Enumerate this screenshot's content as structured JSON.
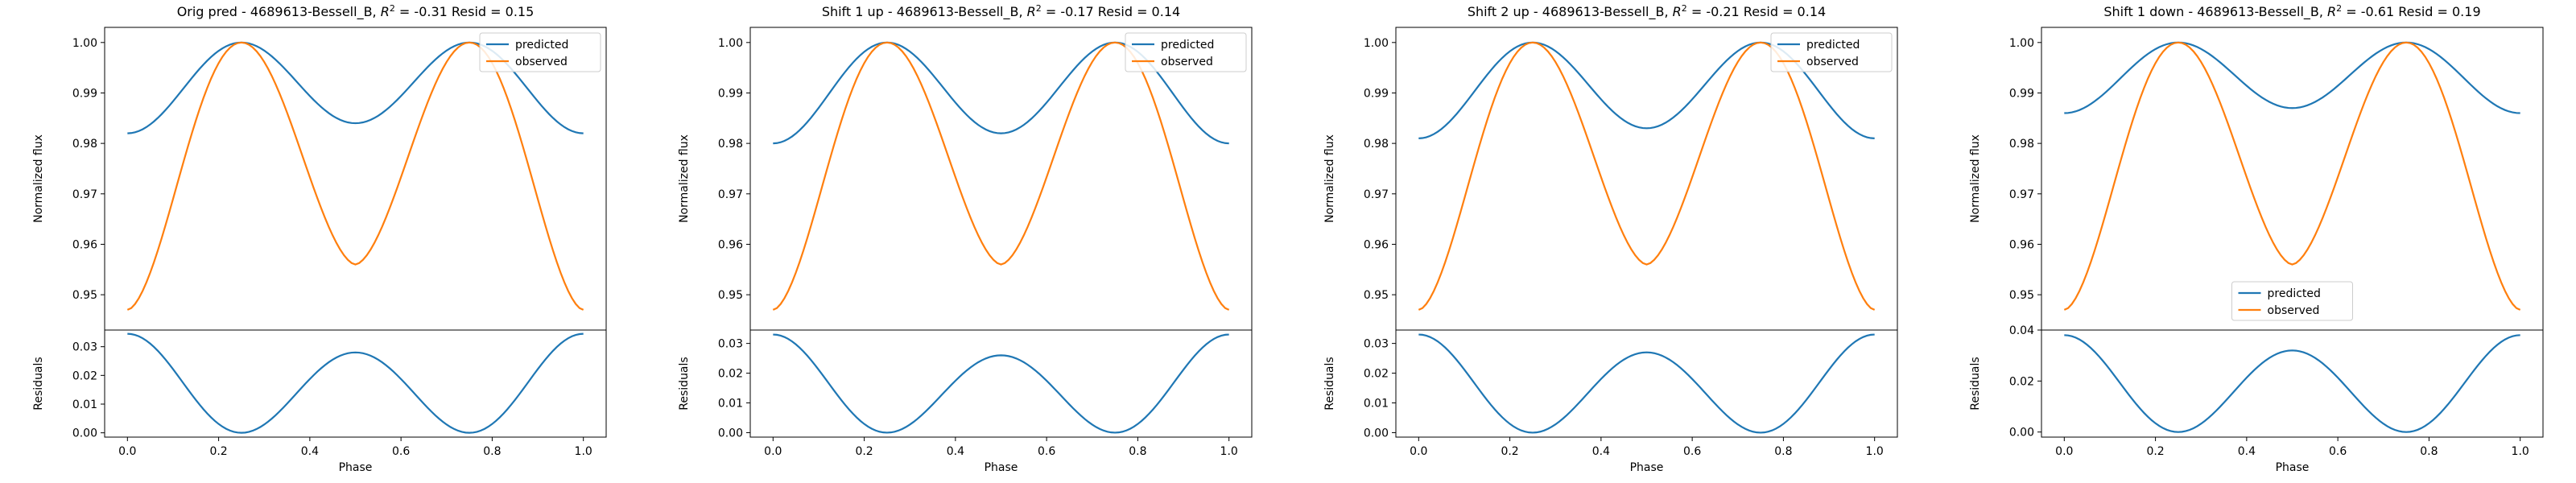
{
  "colors": {
    "predicted": "#1f77b4",
    "observed": "#ff7f0e"
  },
  "chart_data": [
    {
      "type": "line",
      "title": "Orig pred - 4689613-Bessell_B, R² = -0.31 Resid = 0.15",
      "title_parts": {
        "prefix": "Orig pred - 4689613-Bessell_B, ",
        "r": "R",
        "sup": "2",
        "suffix": " = -0.31 Resid = 0.15"
      },
      "xlabel": "Phase",
      "ylabel_top": "Normalized flux",
      "ylabel_bottom": "Residuals",
      "xlim": [
        -0.05,
        1.05
      ],
      "ylim_top": [
        0.943,
        1.003
      ],
      "ylim_bottom": [
        -0.0015,
        0.0358
      ],
      "xticks": [
        "0.0",
        "0.2",
        "0.4",
        "0.6",
        "0.8",
        "1.0"
      ],
      "yticks_top": [
        "0.95",
        "0.96",
        "0.97",
        "0.98",
        "0.99",
        "1.00"
      ],
      "yticks_bottom": [
        "0.00",
        "0.01",
        "0.02",
        "0.03"
      ],
      "legend": [
        "predicted",
        "observed"
      ],
      "legend_position": "upper right",
      "series": [
        {
          "name": "predicted",
          "curve": "sine",
          "minimum": 0.982,
          "secondary_minimum": 0.984
        },
        {
          "name": "observed",
          "curve": "dip",
          "minimum": 0.947,
          "secondary_minimum": 0.956
        },
        {
          "name": "residual",
          "curve": "residual",
          "maximum": 0.0345,
          "mid_value": 0.028
        }
      ]
    },
    {
      "type": "line",
      "title": "Shift 1 up - 4689613-Bessell_B, R² = -0.17 Resid = 0.14",
      "title_parts": {
        "prefix": "Shift 1 up - 4689613-Bessell_B, ",
        "r": "R",
        "sup": "2",
        "suffix": " = -0.17 Resid = 0.14"
      },
      "xlabel": "Phase",
      "ylabel_top": "Normalized flux",
      "ylabel_bottom": "Residuals",
      "xlim": [
        -0.05,
        1.05
      ],
      "ylim_top": [
        0.943,
        1.003
      ],
      "ylim_bottom": [
        -0.0015,
        0.0345
      ],
      "xticks": [
        "0.0",
        "0.2",
        "0.4",
        "0.6",
        "0.8",
        "1.0"
      ],
      "yticks_top": [
        "0.95",
        "0.96",
        "0.97",
        "0.98",
        "0.99",
        "1.00"
      ],
      "yticks_bottom": [
        "0.00",
        "0.01",
        "0.02",
        "0.03"
      ],
      "legend": [
        "predicted",
        "observed"
      ],
      "legend_position": "upper right",
      "series": [
        {
          "name": "predicted",
          "curve": "sine",
          "minimum": 0.98,
          "secondary_minimum": 0.982
        },
        {
          "name": "observed",
          "curve": "dip",
          "minimum": 0.947,
          "secondary_minimum": 0.956
        },
        {
          "name": "residual",
          "curve": "residual",
          "maximum": 0.033,
          "mid_value": 0.026
        }
      ]
    },
    {
      "type": "line",
      "title": "Shift 2 up - 4689613-Bessell_B, R² = -0.21 Resid = 0.14",
      "title_parts": {
        "prefix": "Shift 2 up - 4689613-Bessell_B, ",
        "r": "R",
        "sup": "2",
        "suffix": " = -0.21 Resid = 0.14"
      },
      "xlabel": "Phase",
      "ylabel_top": "Normalized flux",
      "ylabel_bottom": "Residuals",
      "xlim": [
        -0.05,
        1.05
      ],
      "ylim_top": [
        0.943,
        1.003
      ],
      "ylim_bottom": [
        -0.0015,
        0.0345
      ],
      "xticks": [
        "0.0",
        "0.2",
        "0.4",
        "0.6",
        "0.8",
        "1.0"
      ],
      "yticks_top": [
        "0.95",
        "0.96",
        "0.97",
        "0.98",
        "0.99",
        "1.00"
      ],
      "yticks_bottom": [
        "0.00",
        "0.01",
        "0.02",
        "0.03"
      ],
      "legend": [
        "predicted",
        "observed"
      ],
      "legend_position": "upper right",
      "series": [
        {
          "name": "predicted",
          "curve": "sine",
          "minimum": 0.981,
          "secondary_minimum": 0.983
        },
        {
          "name": "observed",
          "curve": "dip",
          "minimum": 0.947,
          "secondary_minimum": 0.956
        },
        {
          "name": "residual",
          "curve": "residual",
          "maximum": 0.033,
          "mid_value": 0.027
        }
      ]
    },
    {
      "type": "line",
      "title": "Shift 1 down - 4689613-Bessell_B, R² = -0.61 Resid = 0.19",
      "title_parts": {
        "prefix": "Shift 1 down - 4689613-Bessell_B, ",
        "r": "R",
        "sup": "2",
        "suffix": " = -0.61 Resid = 0.19"
      },
      "xlabel": "Phase",
      "ylabel_top": "Normalized flux",
      "ylabel_bottom": "Residuals",
      "xlim": [
        -0.05,
        1.05
      ],
      "ylim_top": [
        0.943,
        1.003
      ],
      "ylim_bottom": [
        -0.002,
        0.04
      ],
      "xticks": [
        "0.0",
        "0.2",
        "0.4",
        "0.6",
        "0.8",
        "1.0"
      ],
      "yticks_top": [
        "0.95",
        "0.96",
        "0.97",
        "0.98",
        "0.99",
        "1.00"
      ],
      "yticks_bottom": [
        "0.00",
        "0.02",
        "0.04"
      ],
      "legend": [
        "predicted",
        "observed"
      ],
      "legend_position": "lower center",
      "series": [
        {
          "name": "predicted",
          "curve": "sine",
          "minimum": 0.986,
          "secondary_minimum": 0.987
        },
        {
          "name": "observed",
          "curve": "dip",
          "minimum": 0.947,
          "secondary_minimum": 0.956
        },
        {
          "name": "residual",
          "curve": "residual",
          "maximum": 0.038,
          "mid_value": 0.032
        }
      ]
    }
  ]
}
